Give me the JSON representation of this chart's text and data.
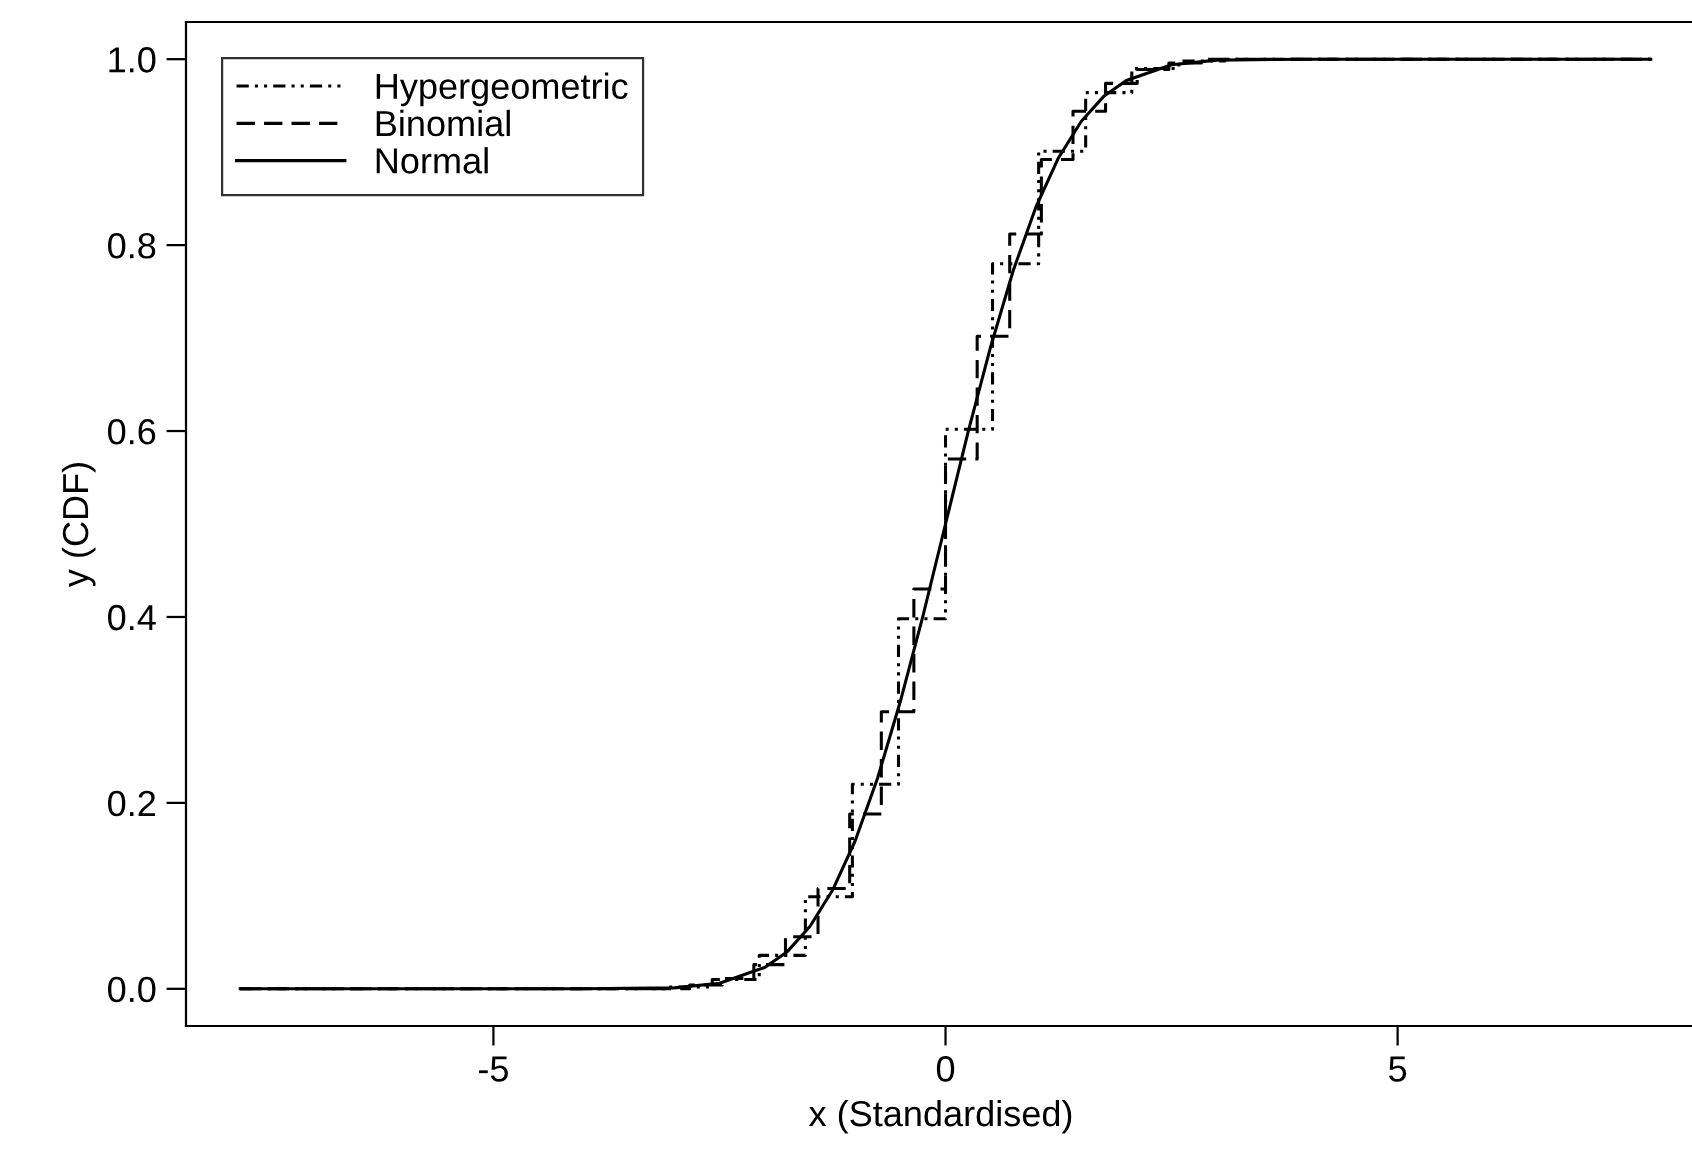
{
  "chart_data": {
    "type": "step",
    "xlabel": "x (Standardised)",
    "ylabel": "y (CDF)",
    "xlim": [
      -8.4,
      8.3
    ],
    "ylim": [
      -0.04,
      1.04
    ],
    "xticks": [
      {
        "value": -5,
        "label": "-5"
      },
      0,
      5
    ],
    "yticks": [
      {
        "value": 0,
        "label": "0.0"
      },
      {
        "value": 0.2,
        "label": "0.2"
      },
      {
        "value": 0.4,
        "label": "0.4"
      },
      {
        "value": 0.6,
        "label": "0.6"
      },
      {
        "value": 0.8,
        "label": "0.8"
      },
      {
        "value": 1,
        "label": "1.0"
      }
    ],
    "grid": false,
    "legend": "top left",
    "series": [
      {
        "name": "Hypergeometric",
        "color": "#000000",
        "line_style": "dotted",
        "x": [
          -7.8,
          -3.09,
          -2.58,
          -2.06,
          -1.55,
          -1.03,
          -0.52,
          0,
          0.52,
          1.03,
          1.55,
          2.06,
          2.58,
          3.09,
          7.8
        ],
        "values": [
          0.0,
          0.002,
          0.01,
          0.036,
          0.099,
          0.22,
          0.398,
          0.602,
          0.78,
          0.901,
          0.964,
          0.99,
          0.998,
          1.0,
          1.0
        ]
      },
      {
        "name": "Binomial",
        "color": "#000000",
        "line_style": "dashed",
        "x": [
          -7.8,
          -2.83,
          -2.47,
          -2.12,
          -1.77,
          -1.41,
          -1.06,
          -0.71,
          -0.35,
          0,
          0.35,
          0.71,
          1.06,
          1.41,
          1.77,
          2.12,
          2.47,
          2.83,
          7.8
        ],
        "values": [
          0.0,
          0.004,
          0.011,
          0.026,
          0.056,
          0.108,
          0.188,
          0.298,
          0.43,
          0.57,
          0.702,
          0.812,
          0.892,
          0.944,
          0.974,
          0.989,
          0.996,
          1.0,
          1.0
        ]
      },
      {
        "name": "Normal",
        "type": "line",
        "color": "#000000",
        "line_style": "solid",
        "x": [
          -7.8,
          -4,
          -3,
          -2.5,
          -2,
          -1.75,
          -1.5,
          -1.25,
          -1,
          -0.75,
          -0.5,
          -0.25,
          0,
          0.25,
          0.5,
          0.75,
          1,
          1.25,
          1.5,
          1.75,
          2,
          2.5,
          3,
          4,
          7.8
        ],
        "values": [
          0.0,
          0.0,
          0.001,
          0.006,
          0.023,
          0.04,
          0.067,
          0.106,
          0.159,
          0.227,
          0.309,
          0.401,
          0.5,
          0.599,
          0.691,
          0.773,
          0.841,
          0.894,
          0.933,
          0.96,
          0.977,
          0.994,
          0.999,
          1.0,
          1.0
        ]
      }
    ]
  }
}
